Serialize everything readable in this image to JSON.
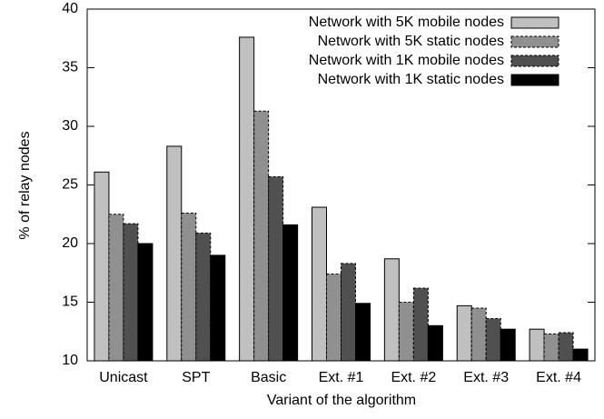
{
  "chart_data": {
    "type": "bar",
    "xlabel": "Variant of the algorithm",
    "ylabel": "% of relay nodes",
    "categories": [
      "Unicast",
      "SPT",
      "Basic",
      "Ext. #1",
      "Ext. #2",
      "Ext. #3",
      "Ext. #4"
    ],
    "series": [
      {
        "name": "Network with 5K mobile nodes",
        "color": "#c0c0c0",
        "values": [
          26.1,
          28.3,
          37.6,
          23.1,
          18.7,
          14.7,
          12.7
        ]
      },
      {
        "name": "Network with 5K static nodes",
        "color": "#909090",
        "values": [
          22.5,
          22.6,
          31.3,
          17.4,
          15.0,
          14.5,
          12.3
        ]
      },
      {
        "name": "Network with 1K mobile nodes",
        "color": "#505050",
        "values": [
          21.7,
          20.9,
          25.7,
          18.3,
          16.2,
          13.6,
          12.4
        ]
      },
      {
        "name": "Network with 1K static nodes",
        "color": "#000000",
        "values": [
          20.0,
          19.0,
          21.6,
          14.9,
          13.0,
          12.7,
          11.0
        ]
      }
    ],
    "ylim": [
      10,
      40
    ],
    "yticks": [
      10,
      15,
      20,
      25,
      30,
      35,
      40
    ],
    "legend": "upper right"
  }
}
